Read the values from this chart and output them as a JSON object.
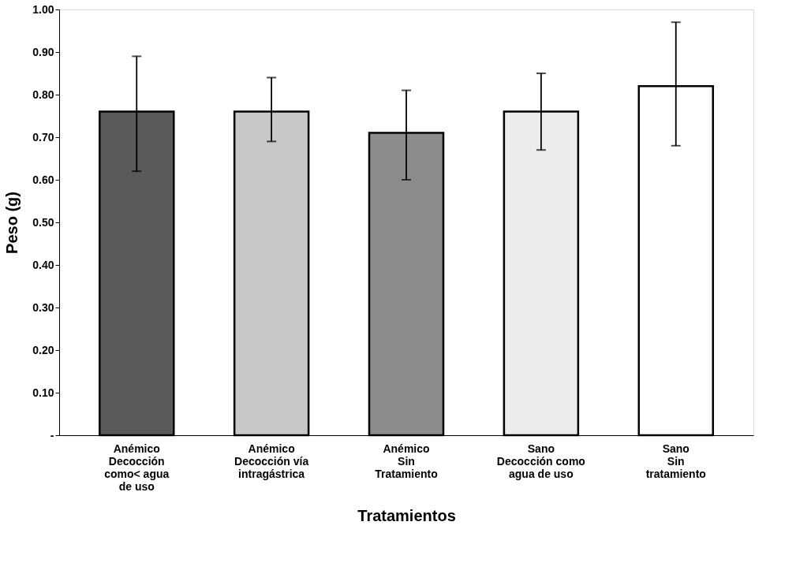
{
  "chart_data": {
    "type": "bar",
    "xlabel": "Tratamientos",
    "ylabel": "Peso (g)",
    "categories": [
      "Anémico\nDecocción\ncomo< agua\nde uso",
      "Anémico\nDecocción vía\nintragástrica",
      "Anémico\nSin\nTratamiento",
      "Sano\nDecocción como\nagua de uso",
      "Sano\nSin\ntratamiento"
    ],
    "values": [
      0.76,
      0.76,
      0.71,
      0.76,
      0.82
    ],
    "colors": [
      "#5a5a5a",
      "#c8c8c8",
      "#8c8c8c",
      "#ececec",
      "#ffffff"
    ],
    "errors": [
      [
        0.62,
        0.89
      ],
      [
        0.69,
        0.84
      ],
      [
        0.6,
        0.81
      ],
      [
        0.67,
        0.85
      ],
      [
        0.68,
        0.97
      ]
    ],
    "ylim": [
      0,
      1.0
    ],
    "yticks": [
      {
        "value": 0,
        "label": "-"
      },
      {
        "value": 0.1,
        "label": "0.10"
      },
      {
        "value": 0.2,
        "label": "0.20"
      },
      {
        "value": 0.3,
        "label": "0.30"
      },
      {
        "value": 0.4,
        "label": "0.40"
      },
      {
        "value": 0.5,
        "label": "0.50"
      },
      {
        "value": 0.6,
        "label": "0.60"
      },
      {
        "value": 0.7,
        "label": "0.70"
      },
      {
        "value": 0.8,
        "label": "0.80"
      },
      {
        "value": 0.9,
        "label": "0.90"
      },
      {
        "value": 1.0,
        "label": "1.00"
      }
    ],
    "grid": false,
    "legend": false
  }
}
